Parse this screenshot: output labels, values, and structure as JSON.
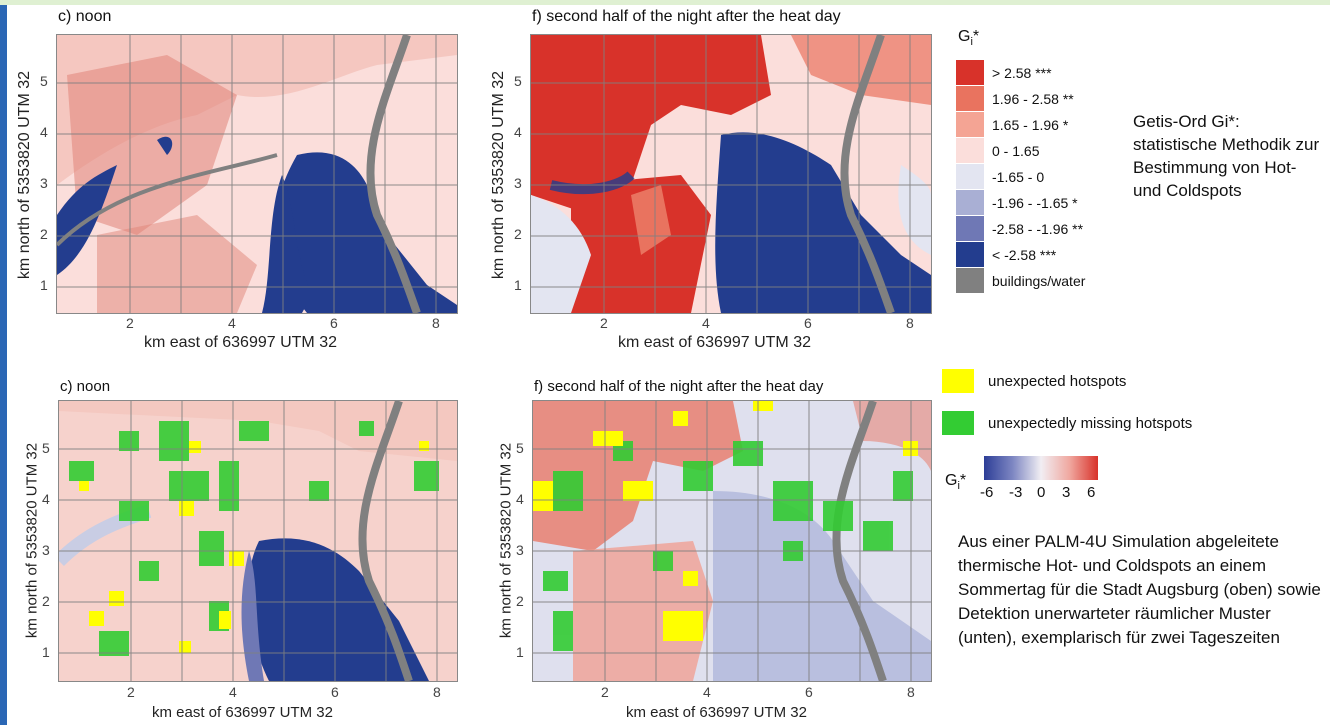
{
  "panels": {
    "p1": {
      "title": "c) noon"
    },
    "p2": {
      "title": "f) second half of the night after the heat day"
    },
    "p3": {
      "title": "c) noon"
    },
    "p4": {
      "title": "f) second half of the night after the heat day"
    },
    "ylabel": "km north of 5353820 UTM 32",
    "xlabel": "km east of 636997 UTM 32",
    "xticks": [
      "2",
      "4",
      "6",
      "8"
    ],
    "yticks": [
      "5",
      "4",
      "3",
      "2",
      "1"
    ]
  },
  "legend": {
    "title": "Gi*",
    "items": [
      {
        "label": "> 2.58 ***",
        "color": "#d8322a"
      },
      {
        "label": "1.96 - 2.58 **",
        "color": "#e9735f"
      },
      {
        "label": "1.65 - 1.96 *",
        "color": "#f4a494"
      },
      {
        "label": "0 - 1.65",
        "color": "#fbdedb"
      },
      {
        "label": "-1.65 - 0",
        "color": "#e3e5f1"
      },
      {
        "label": "-1.96 - -1.65 *",
        "color": "#a9afd4"
      },
      {
        "label": "-2.58 - -1.96 **",
        "color": "#6f78b5"
      },
      {
        "label": "< -2.58 ***",
        "color": "#233d8e"
      },
      {
        "label": "buildings/water",
        "color": "#808080"
      }
    ]
  },
  "side_text": "Getis-Ord Gi*: statistische Methodik zur Bestimmung von Hot- und Coldspots",
  "lower_legend": {
    "unexpected_hot": {
      "label": "unexpected hotspots",
      "color": "#ffff00"
    },
    "missing_hot": {
      "label": "unexpectedly missing hotspots",
      "color": "#33cc33"
    },
    "colorbar_title": "Gi*",
    "colorbar_ticks": [
      "-6",
      "-3",
      "0",
      "3",
      "6"
    ]
  },
  "caption": "Aus einer PALM-4U Simulation abgeleitete thermische Hot- und Coldspots an einem Sommertag für die Stadt Augsburg (oben) sowie Detektion unerwarteter räumlicher Muster (unten), exemplarisch für zwei Tageszeiten"
}
